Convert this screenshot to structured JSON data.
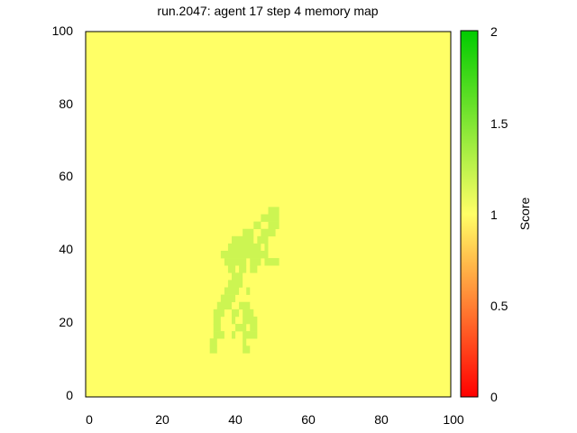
{
  "chart_data": {
    "type": "heatmap",
    "title": "run.2047: agent 17 step 4 memory map",
    "xlabel": "",
    "ylabel": "",
    "xlim": [
      0,
      100
    ],
    "ylim": [
      0,
      100
    ],
    "x_ticks": [
      "0",
      "20",
      "40",
      "60",
      "80",
      "100"
    ],
    "y_ticks": [
      "0",
      "20",
      "40",
      "60",
      "80",
      "100"
    ],
    "grid": false,
    "cell_size": 1,
    "background_value": 1,
    "colorbar": {
      "label": "Score",
      "range": [
        0,
        2
      ],
      "ticks": [
        "0",
        "0.5",
        "1",
        "1.5",
        "2"
      ],
      "colors": {
        "low": "#ff0000",
        "mid": "#ffff66",
        "high": "#00cc00"
      }
    },
    "region_value": 1.2,
    "region_rows": [
      {
        "y": 12,
        "segments": [
          [
            34,
            36
          ],
          [
            43,
            45
          ]
        ]
      },
      {
        "y": 14,
        "segments": [
          [
            34,
            36
          ],
          [
            43,
            44
          ]
        ]
      },
      {
        "y": 16,
        "segments": [
          [
            35,
            38
          ],
          [
            40,
            41
          ],
          [
            43,
            47
          ]
        ]
      },
      {
        "y": 18,
        "segments": [
          [
            35,
            37
          ],
          [
            41,
            44
          ],
          [
            45,
            47
          ]
        ]
      },
      {
        "y": 20,
        "segments": [
          [
            35,
            37
          ],
          [
            40,
            41
          ],
          [
            43,
            47
          ]
        ]
      },
      {
        "y": 22,
        "segments": [
          [
            35,
            38
          ],
          [
            40,
            42
          ],
          [
            43,
            46
          ]
        ]
      },
      {
        "y": 24,
        "segments": [
          [
            36,
            40
          ],
          [
            42,
            45
          ]
        ]
      },
      {
        "y": 26,
        "segments": [
          [
            37,
            41
          ]
        ]
      },
      {
        "y": 28,
        "segments": [
          [
            38,
            42
          ],
          [
            44,
            45
          ]
        ]
      },
      {
        "y": 30,
        "segments": [
          [
            39,
            43
          ]
        ]
      },
      {
        "y": 32,
        "segments": [
          [
            40,
            43
          ]
        ]
      },
      {
        "y": 34,
        "segments": [
          [
            39,
            41
          ],
          [
            42,
            44
          ],
          [
            45,
            47
          ]
        ]
      },
      {
        "y": 36,
        "segments": [
          [
            38,
            44
          ],
          [
            45,
            48
          ],
          [
            49,
            53
          ]
        ]
      },
      {
        "y": 38,
        "segments": [
          [
            37,
            50
          ]
        ]
      },
      {
        "y": 40,
        "segments": [
          [
            39,
            48
          ],
          [
            49,
            50
          ]
        ]
      },
      {
        "y": 42,
        "segments": [
          [
            40,
            46
          ],
          [
            47,
            50
          ]
        ]
      },
      {
        "y": 44,
        "segments": [
          [
            43,
            46
          ],
          [
            48,
            52
          ]
        ]
      },
      {
        "y": 46,
        "segments": [
          [
            46,
            48
          ],
          [
            50,
            53
          ]
        ]
      },
      {
        "y": 48,
        "segments": [
          [
            48,
            53
          ]
        ]
      },
      {
        "y": 50,
        "segments": [
          [
            50,
            53
          ]
        ]
      }
    ]
  }
}
